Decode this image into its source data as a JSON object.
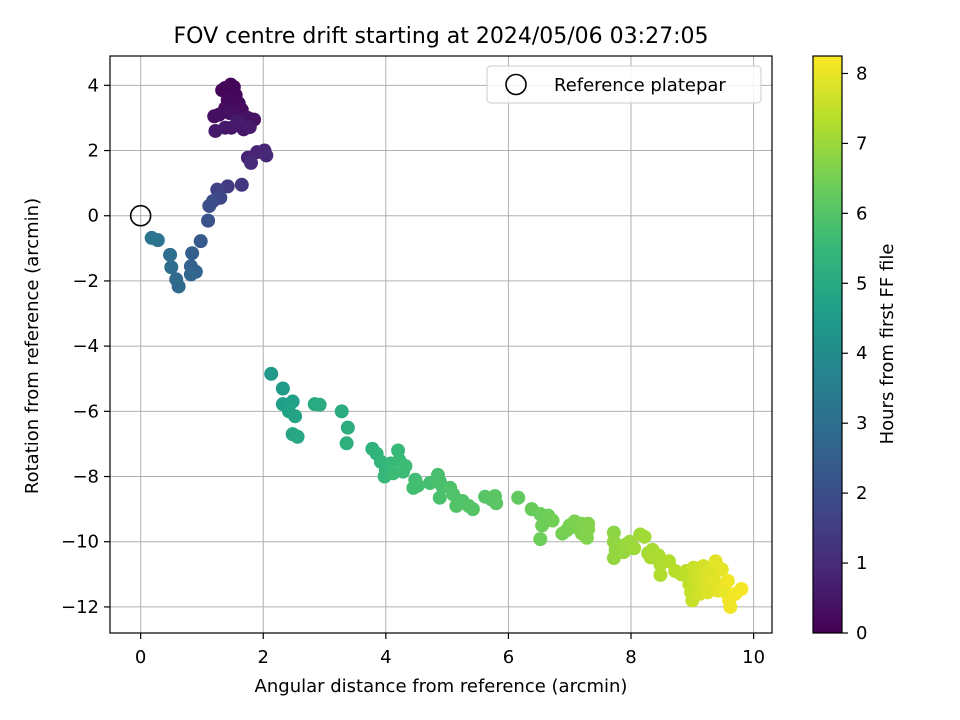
{
  "chart_data": {
    "type": "scatter",
    "title": "FOV centre drift starting at 2024/05/06 03:27:05",
    "xlabel": "Angular distance from reference (arcmin)",
    "ylabel": "Rotation from reference (arcmin)",
    "xlim": [
      -0.5,
      10.3
    ],
    "ylim": [
      -12.8,
      4.9
    ],
    "xticks": [
      "0",
      "2",
      "4",
      "6",
      "8",
      "10"
    ],
    "xtick_values": [
      0,
      2,
      4,
      6,
      8,
      10
    ],
    "yticks": [
      "4",
      "2",
      "0",
      "−2",
      "−4",
      "−6",
      "−8",
      "−10",
      "−12"
    ],
    "ytick_values": [
      4,
      2,
      0,
      -2,
      -4,
      -6,
      -8,
      -10,
      -12
    ],
    "grid": true,
    "legend": {
      "label": "Reference platepar",
      "placement": "top-right"
    },
    "reference_point": {
      "x": 0,
      "y": 0
    },
    "colorbar": {
      "label": "Hours from first FF file",
      "range": [
        0,
        8.25
      ],
      "ticks": [
        "0",
        "1",
        "2",
        "3",
        "4",
        "5",
        "6",
        "7",
        "8"
      ],
      "tick_values": [
        0,
        1,
        2,
        3,
        4,
        5,
        6,
        7,
        8
      ],
      "colormap": "viridis",
      "colors": [
        "#440154",
        "#482878",
        "#3e4989",
        "#31688e",
        "#26828e",
        "#1f9e89",
        "#35b779",
        "#6ece58",
        "#b5de2b",
        "#fde725"
      ]
    },
    "points": [
      {
        "x": 1.38,
        "y": 3.92,
        "t": 0.05
      },
      {
        "x": 1.47,
        "y": 4.02,
        "t": 0.08
      },
      {
        "x": 1.52,
        "y": 3.95,
        "t": 0.1
      },
      {
        "x": 1.33,
        "y": 3.85,
        "t": 0.12
      },
      {
        "x": 1.55,
        "y": 3.7,
        "t": 0.15
      },
      {
        "x": 1.42,
        "y": 3.55,
        "t": 0.18
      },
      {
        "x": 1.6,
        "y": 3.45,
        "t": 0.2
      },
      {
        "x": 1.5,
        "y": 3.4,
        "t": 0.22
      },
      {
        "x": 1.38,
        "y": 3.3,
        "t": 0.25
      },
      {
        "x": 1.65,
        "y": 3.25,
        "t": 0.27
      },
      {
        "x": 1.28,
        "y": 3.1,
        "t": 0.3
      },
      {
        "x": 1.2,
        "y": 3.05,
        "t": 0.32
      },
      {
        "x": 1.45,
        "y": 3.15,
        "t": 0.35
      },
      {
        "x": 1.58,
        "y": 3.0,
        "t": 0.37
      },
      {
        "x": 1.75,
        "y": 3.0,
        "t": 0.4
      },
      {
        "x": 1.85,
        "y": 2.95,
        "t": 0.42
      },
      {
        "x": 1.62,
        "y": 2.8,
        "t": 0.45
      },
      {
        "x": 1.72,
        "y": 2.7,
        "t": 0.47
      },
      {
        "x": 1.68,
        "y": 2.65,
        "t": 0.5
      },
      {
        "x": 1.48,
        "y": 2.7,
        "t": 0.52
      },
      {
        "x": 1.38,
        "y": 2.7,
        "t": 0.55
      },
      {
        "x": 1.22,
        "y": 2.6,
        "t": 0.57
      },
      {
        "x": 1.78,
        "y": 2.72,
        "t": 0.6
      },
      {
        "x": 1.58,
        "y": 2.9,
        "t": 0.62
      },
      {
        "x": 1.75,
        "y": 1.78,
        "t": 0.8
      },
      {
        "x": 1.9,
        "y": 1.95,
        "t": 0.85
      },
      {
        "x": 2.02,
        "y": 2.0,
        "t": 0.9
      },
      {
        "x": 2.05,
        "y": 1.85,
        "t": 0.95
      },
      {
        "x": 1.8,
        "y": 1.62,
        "t": 1.0
      },
      {
        "x": 1.65,
        "y": 0.95,
        "t": 1.3
      },
      {
        "x": 1.42,
        "y": 0.9,
        "t": 1.45
      },
      {
        "x": 1.25,
        "y": 0.8,
        "t": 1.6
      },
      {
        "x": 1.3,
        "y": 0.55,
        "t": 1.75
      },
      {
        "x": 1.18,
        "y": 0.45,
        "t": 1.9
      },
      {
        "x": 1.12,
        "y": 0.3,
        "t": 2.0
      },
      {
        "x": 1.1,
        "y": -0.15,
        "t": 2.15
      },
      {
        "x": 0.98,
        "y": -0.78,
        "t": 2.3
      },
      {
        "x": 0.84,
        "y": -1.15,
        "t": 2.45
      },
      {
        "x": 0.82,
        "y": -1.55,
        "t": 2.55
      },
      {
        "x": 0.9,
        "y": -1.72,
        "t": 2.62
      },
      {
        "x": 0.82,
        "y": -1.8,
        "t": 2.7
      },
      {
        "x": 0.62,
        "y": -2.17,
        "t": 2.8
      },
      {
        "x": 0.58,
        "y": -1.95,
        "t": 2.85
      },
      {
        "x": 0.5,
        "y": -1.58,
        "t": 2.92
      },
      {
        "x": 0.48,
        "y": -1.2,
        "t": 3.0
      },
      {
        "x": 0.28,
        "y": -0.75,
        "t": 3.1
      },
      {
        "x": 0.18,
        "y": -0.68,
        "t": 3.2
      },
      {
        "x": 2.13,
        "y": -4.85,
        "t": 4.4
      },
      {
        "x": 2.32,
        "y": -5.3,
        "t": 4.5
      },
      {
        "x": 2.32,
        "y": -5.78,
        "t": 4.6
      },
      {
        "x": 2.48,
        "y": -5.7,
        "t": 4.65
      },
      {
        "x": 2.42,
        "y": -6.0,
        "t": 4.75
      },
      {
        "x": 2.52,
        "y": -6.15,
        "t": 4.8
      },
      {
        "x": 2.48,
        "y": -6.7,
        "t": 4.85
      },
      {
        "x": 2.56,
        "y": -6.78,
        "t": 4.9
      },
      {
        "x": 2.84,
        "y": -5.78,
        "t": 5.0
      },
      {
        "x": 2.92,
        "y": -5.8,
        "t": 5.05
      },
      {
        "x": 3.28,
        "y": -6.0,
        "t": 5.1
      },
      {
        "x": 3.38,
        "y": -6.5,
        "t": 5.15
      },
      {
        "x": 3.36,
        "y": -6.98,
        "t": 5.2
      },
      {
        "x": 3.78,
        "y": -7.15,
        "t": 5.3
      },
      {
        "x": 3.85,
        "y": -7.3,
        "t": 5.35
      },
      {
        "x": 3.92,
        "y": -7.55,
        "t": 5.4
      },
      {
        "x": 4.0,
        "y": -7.8,
        "t": 5.45
      },
      {
        "x": 3.98,
        "y": -8.0,
        "t": 5.5
      },
      {
        "x": 4.08,
        "y": -7.6,
        "t": 5.52
      },
      {
        "x": 4.2,
        "y": -7.2,
        "t": 5.55
      },
      {
        "x": 4.22,
        "y": -7.5,
        "t": 5.57
      },
      {
        "x": 4.12,
        "y": -7.9,
        "t": 5.6
      },
      {
        "x": 4.28,
        "y": -7.85,
        "t": 5.62
      },
      {
        "x": 4.32,
        "y": -7.68,
        "t": 5.65
      },
      {
        "x": 4.48,
        "y": -8.1,
        "t": 5.7
      },
      {
        "x": 4.45,
        "y": -8.35,
        "t": 5.72
      },
      {
        "x": 4.52,
        "y": -8.28,
        "t": 5.74
      },
      {
        "x": 4.72,
        "y": -8.2,
        "t": 5.78
      },
      {
        "x": 4.85,
        "y": -7.95,
        "t": 5.8
      },
      {
        "x": 4.88,
        "y": -8.15,
        "t": 5.82
      },
      {
        "x": 4.92,
        "y": -8.3,
        "t": 5.84
      },
      {
        "x": 4.88,
        "y": -8.65,
        "t": 5.86
      },
      {
        "x": 5.05,
        "y": -8.35,
        "t": 5.9
      },
      {
        "x": 5.1,
        "y": -8.55,
        "t": 5.92
      },
      {
        "x": 5.25,
        "y": -8.75,
        "t": 5.95
      },
      {
        "x": 5.15,
        "y": -8.9,
        "t": 5.97
      },
      {
        "x": 5.35,
        "y": -8.9,
        "t": 6.0
      },
      {
        "x": 5.42,
        "y": -9.0,
        "t": 6.02
      },
      {
        "x": 5.62,
        "y": -8.62,
        "t": 6.05
      },
      {
        "x": 5.72,
        "y": -8.7,
        "t": 6.07
      },
      {
        "x": 5.78,
        "y": -8.6,
        "t": 6.09
      },
      {
        "x": 5.8,
        "y": -8.82,
        "t": 6.11
      },
      {
        "x": 6.16,
        "y": -8.65,
        "t": 6.2
      },
      {
        "x": 6.38,
        "y": -9.0,
        "t": 6.3
      },
      {
        "x": 6.52,
        "y": -9.15,
        "t": 6.35
      },
      {
        "x": 6.55,
        "y": -9.5,
        "t": 6.38
      },
      {
        "x": 6.52,
        "y": -9.92,
        "t": 6.4
      },
      {
        "x": 6.65,
        "y": -9.2,
        "t": 6.42
      },
      {
        "x": 6.72,
        "y": -9.35,
        "t": 6.45
      },
      {
        "x": 6.88,
        "y": -9.75,
        "t": 6.5
      },
      {
        "x": 6.95,
        "y": -9.65,
        "t": 6.52
      },
      {
        "x": 7.0,
        "y": -9.5,
        "t": 6.55
      },
      {
        "x": 7.05,
        "y": -9.55,
        "t": 6.57
      },
      {
        "x": 7.08,
        "y": -9.38,
        "t": 6.6
      },
      {
        "x": 7.2,
        "y": -9.45,
        "t": 6.62
      },
      {
        "x": 7.2,
        "y": -9.75,
        "t": 6.64
      },
      {
        "x": 7.28,
        "y": -9.88,
        "t": 6.66
      },
      {
        "x": 7.3,
        "y": -9.45,
        "t": 6.68
      },
      {
        "x": 7.3,
        "y": -9.62,
        "t": 6.7
      },
      {
        "x": 7.72,
        "y": -9.72,
        "t": 6.8
      },
      {
        "x": 7.72,
        "y": -10.0,
        "t": 6.85
      },
      {
        "x": 7.75,
        "y": -10.25,
        "t": 6.88
      },
      {
        "x": 7.72,
        "y": -10.5,
        "t": 6.9
      },
      {
        "x": 7.88,
        "y": -10.32,
        "t": 6.93
      },
      {
        "x": 7.9,
        "y": -10.1,
        "t": 6.96
      },
      {
        "x": 7.98,
        "y": -10.0,
        "t": 7.0
      },
      {
        "x": 8.05,
        "y": -10.2,
        "t": 7.03
      },
      {
        "x": 8.15,
        "y": -9.78,
        "t": 7.06
      },
      {
        "x": 8.22,
        "y": -9.85,
        "t": 7.09
      },
      {
        "x": 8.28,
        "y": -10.35,
        "t": 7.12
      },
      {
        "x": 8.35,
        "y": -10.25,
        "t": 7.15
      },
      {
        "x": 8.32,
        "y": -10.48,
        "t": 7.18
      },
      {
        "x": 8.45,
        "y": -10.42,
        "t": 7.21
      },
      {
        "x": 8.48,
        "y": -10.7,
        "t": 7.24
      },
      {
        "x": 8.48,
        "y": -11.02,
        "t": 7.27
      },
      {
        "x": 8.62,
        "y": -10.6,
        "t": 7.3
      },
      {
        "x": 8.72,
        "y": -10.9,
        "t": 7.35
      },
      {
        "x": 8.82,
        "y": -11.0,
        "t": 7.4
      },
      {
        "x": 8.9,
        "y": -10.9,
        "t": 7.45
      },
      {
        "x": 8.95,
        "y": -11.3,
        "t": 7.5
      },
      {
        "x": 8.98,
        "y": -11.55,
        "t": 7.55
      },
      {
        "x": 9.0,
        "y": -11.8,
        "t": 7.58
      },
      {
        "x": 9.02,
        "y": -10.8,
        "t": 7.6
      },
      {
        "x": 9.05,
        "y": -11.05,
        "t": 7.62
      },
      {
        "x": 9.1,
        "y": -11.25,
        "t": 7.65
      },
      {
        "x": 9.12,
        "y": -11.6,
        "t": 7.68
      },
      {
        "x": 9.15,
        "y": -11.0,
        "t": 7.7
      },
      {
        "x": 9.18,
        "y": -10.75,
        "t": 7.72
      },
      {
        "x": 9.2,
        "y": -11.42,
        "t": 7.75
      },
      {
        "x": 9.22,
        "y": -11.15,
        "t": 7.78
      },
      {
        "x": 9.25,
        "y": -11.55,
        "t": 7.8
      },
      {
        "x": 9.28,
        "y": -10.9,
        "t": 7.82
      },
      {
        "x": 9.3,
        "y": -11.3,
        "t": 7.85
      },
      {
        "x": 9.35,
        "y": -11.1,
        "t": 7.88
      },
      {
        "x": 9.38,
        "y": -10.6,
        "t": 7.9
      },
      {
        "x": 9.42,
        "y": -11.5,
        "t": 7.92
      },
      {
        "x": 9.48,
        "y": -10.85,
        "t": 7.95
      },
      {
        "x": 9.5,
        "y": -11.35,
        "t": 7.98
      },
      {
        "x": 9.55,
        "y": -11.55,
        "t": 8.0
      },
      {
        "x": 9.6,
        "y": -11.8,
        "t": 8.05
      },
      {
        "x": 9.62,
        "y": -12.0,
        "t": 8.08
      },
      {
        "x": 9.58,
        "y": -11.2,
        "t": 8.1
      },
      {
        "x": 9.7,
        "y": -11.6,
        "t": 8.12
      },
      {
        "x": 9.8,
        "y": -11.45,
        "t": 8.15
      }
    ]
  }
}
